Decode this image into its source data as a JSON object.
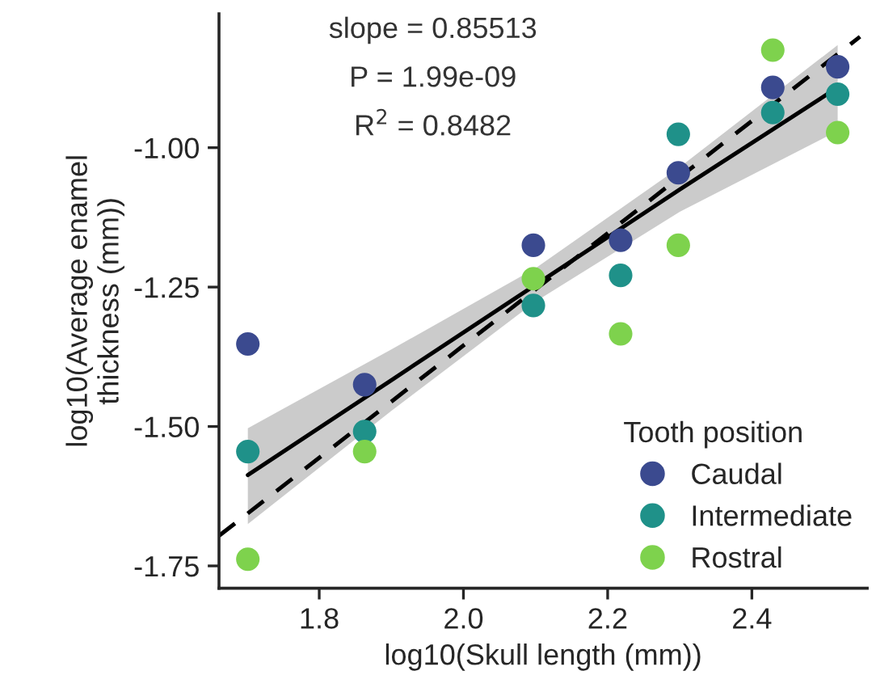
{
  "chart_data": {
    "type": "scatter",
    "xlabel": "log10(Skull length (mm))",
    "ylabel": "log10(Average enamel\nthickness (mm))",
    "legend_title": "Tooth position",
    "legend": "bottom right",
    "grid": false,
    "marker": "circle",
    "xlim": [
      1.661,
      2.56
    ],
    "ylim": [
      -1.79,
      -0.76
    ],
    "xticks": [
      1.8,
      {
        "value": 2.0,
        "label": "2.0"
      },
      2.2,
      2.4
    ],
    "yticks": [
      {
        "value": -1.75,
        "label": "-1.75"
      },
      {
        "value": -1.5,
        "label": "-1.50"
      },
      {
        "value": -1.25,
        "label": "-1.25"
      },
      {
        "value": -1.0,
        "label": "-1.00"
      }
    ],
    "annotations": [
      "slope = 0.85513",
      "P = 1.99e-09",
      "R$^{2}$ = 0.8482"
    ],
    "series": [
      {
        "name": "Caudal",
        "color": "#3b4a8f",
        "x": [
          1.701,
          1.863,
          2.097,
          2.218,
          2.298,
          2.429,
          2.519
        ],
        "values": [
          -1.352,
          -1.425,
          -1.175,
          -1.166,
          -1.045,
          -0.892,
          -0.855
        ]
      },
      {
        "name": "Intermediate",
        "color": "#1f9189",
        "x": [
          1.701,
          1.863,
          2.097,
          2.218,
          2.298,
          2.429,
          2.519
        ],
        "values": [
          -1.545,
          -1.509,
          -1.283,
          -1.229,
          -0.976,
          -0.937,
          -0.904
        ]
      },
      {
        "name": "Rostral",
        "color": "#7ed24d",
        "x": [
          1.701,
          1.863,
          2.097,
          2.218,
          2.298,
          2.429,
          2.519
        ],
        "values": [
          -1.738,
          -1.545,
          -1.235,
          -1.334,
          -1.175,
          -0.825,
          -0.973
        ]
      },
      {
        "type": "line",
        "marker": "none",
        "color": "#000000",
        "line_style": "solid",
        "x": [
          1.701,
          1.9,
          2.1,
          2.3,
          2.519
        ],
        "values": [
          -1.587,
          -1.417,
          -1.246,
          -1.075,
          -0.892
        ],
        "lower": [
          -1.675,
          -1.472,
          -1.276,
          -1.115,
          -0.97
        ],
        "upper": [
          -1.503,
          -1.362,
          -1.216,
          -1.035,
          -0.816
        ]
      },
      {
        "type": "line",
        "marker": "none",
        "color": "#000000",
        "line_style": "dashed",
        "x": [
          1.661,
          2.55
        ],
        "values": [
          -1.696,
          -0.801
        ]
      }
    ]
  }
}
